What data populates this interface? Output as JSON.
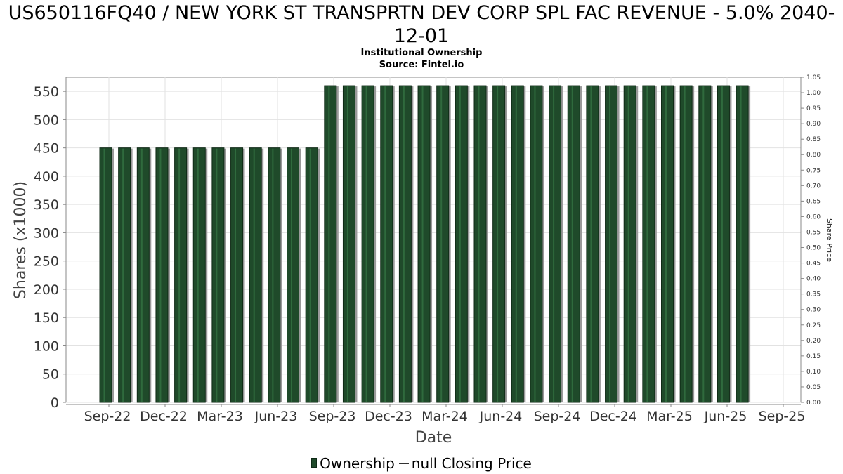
{
  "chart_data": {
    "type": "bar",
    "title": "US650116FQ40 / NEW YORK ST TRANSPRTN DEV CORP SPL FAC REVENUE - 5.0% 2040-12-01",
    "subtitle_1": "Institutional Ownership",
    "subtitle_2": "Source: Fintel.io",
    "xlabel": "Date",
    "ylabel": "Shares (x1000)",
    "y2label": "Share Price",
    "ylim": [
      0,
      575
    ],
    "y2lim": [
      0,
      1.05
    ],
    "yticks": [
      0,
      50,
      100,
      150,
      200,
      250,
      300,
      350,
      400,
      450,
      500,
      550
    ],
    "y2ticks": [
      "0.00",
      "0.05",
      "0.10",
      "0.15",
      "0.20",
      "0.25",
      "0.30",
      "0.35",
      "0.40",
      "0.45",
      "0.50",
      "0.55",
      "0.60",
      "0.65",
      "0.70",
      "0.75",
      "0.80",
      "0.85",
      "0.90",
      "0.95",
      "1.00",
      "1.05"
    ],
    "xticks": [
      "Sep-22",
      "Dec-22",
      "Mar-23",
      "Jun-23",
      "Sep-23",
      "Dec-23",
      "Mar-24",
      "Jun-24",
      "Sep-24",
      "Dec-24",
      "Mar-25",
      "Jun-25",
      "Sep-25"
    ],
    "grid": true,
    "legend_position": "bottom",
    "series": [
      {
        "name": "Ownership",
        "color": "#1f4a2a",
        "values": [
          450,
          450,
          450,
          450,
          450,
          450,
          450,
          450,
          450,
          450,
          450,
          450,
          560,
          560,
          560,
          560,
          560,
          560,
          560,
          560,
          560,
          560,
          560,
          560,
          560,
          560,
          560,
          560,
          560,
          560,
          560,
          560,
          560,
          560,
          560
        ]
      }
    ],
    "legend": [
      "Ownership",
      "null Closing Price"
    ]
  }
}
